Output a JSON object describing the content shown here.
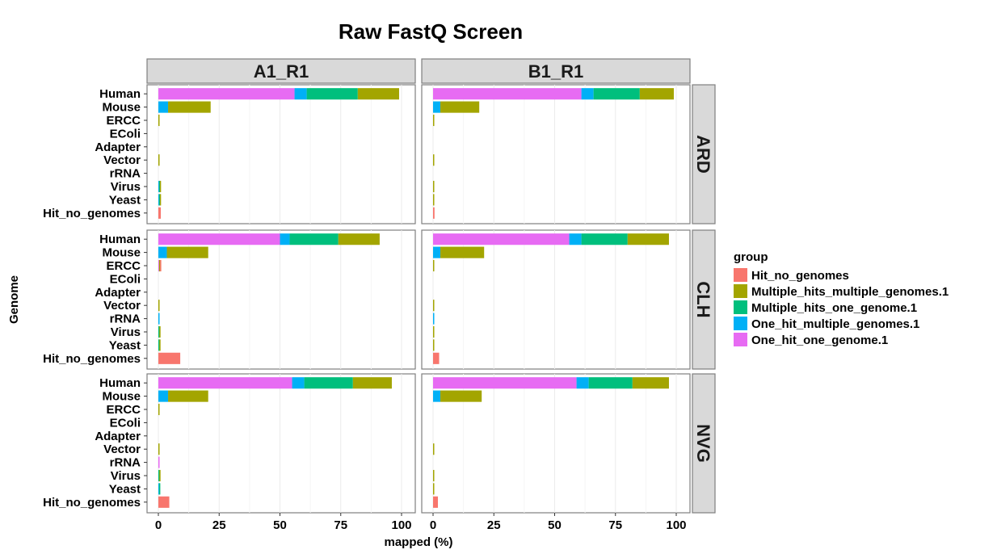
{
  "chart_data": {
    "type": "bar",
    "orientation": "horizontal",
    "stacked": true,
    "title": "Raw FastQ Screen",
    "xlabel": "mapped (%)",
    "ylabel": "Genome",
    "xlim": [
      0,
      100
    ],
    "xticks": [
      "0",
      "25",
      "50",
      "75",
      "100"
    ],
    "grid": true,
    "legend_position": "right",
    "facet_columns": [
      "A1_R1",
      "B1_R1"
    ],
    "facet_rows": [
      "ARD",
      "CLH",
      "NVG"
    ],
    "categories": [
      "Human",
      "Mouse",
      "ERCC",
      "EColi",
      "Adapter",
      "Vector",
      "rRNA",
      "Virus",
      "Yeast",
      "Hit_no_genomes"
    ],
    "legend": {
      "title": "group",
      "items": [
        {
          "key": "Hit_no_genomes",
          "label": "Hit_no_genomes",
          "color": "#F8766D"
        },
        {
          "key": "Multiple_hits_multiple_genomes.1",
          "label": "Multiple_hits_multiple_genomes.1",
          "color": "#A3A500"
        },
        {
          "key": "Multiple_hits_one_genome.1",
          "label": "Multiple_hits_one_genome.1",
          "color": "#00BF7D"
        },
        {
          "key": "One_hit_multiple_genomes.1",
          "label": "One_hit_multiple_genomes.1",
          "color": "#00B0F6"
        },
        {
          "key": "One_hit_one_genome.1",
          "label": "One_hit_one_genome.1",
          "color": "#E76BF3"
        }
      ]
    },
    "stack_order": [
      "One_hit_one_genome.1",
      "One_hit_multiple_genomes.1",
      "Multiple_hits_one_genome.1",
      "Multiple_hits_multiple_genomes.1",
      "Hit_no_genomes"
    ],
    "panels": [
      {
        "row": "ARD",
        "col": "A1_R1",
        "bars": {
          "Human": [
            56,
            5,
            21,
            17,
            0
          ],
          "Mouse": [
            0,
            4,
            0,
            17.5,
            0
          ],
          "ERCC": [
            0,
            0,
            0,
            0.4,
            0
          ],
          "EColi": [
            0,
            0,
            0,
            0,
            0
          ],
          "Adapter": [
            0,
            0,
            0,
            0,
            0
          ],
          "Vector": [
            0,
            0,
            0,
            0.4,
            0
          ],
          "rRNA": [
            0,
            0,
            0,
            0,
            0
          ],
          "Virus": [
            0,
            0.3,
            0.3,
            0.3,
            0
          ],
          "Yeast": [
            0,
            0.3,
            0.3,
            0.3,
            0
          ],
          "Hit_no_genomes": [
            0,
            0,
            0,
            0,
            1
          ]
        }
      },
      {
        "row": "ARD",
        "col": "B1_R1",
        "bars": {
          "Human": [
            61,
            5,
            19,
            14,
            0
          ],
          "Mouse": [
            0,
            3,
            0,
            16,
            0
          ],
          "ERCC": [
            0,
            0,
            0,
            0.3,
            0
          ],
          "EColi": [
            0,
            0,
            0,
            0,
            0
          ],
          "Adapter": [
            0,
            0,
            0,
            0,
            0
          ],
          "Vector": [
            0,
            0,
            0,
            0.3,
            0
          ],
          "rRNA": [
            0,
            0,
            0,
            0,
            0
          ],
          "Virus": [
            0,
            0,
            0,
            0.5,
            0
          ],
          "Yeast": [
            0,
            0,
            0,
            0.5,
            0
          ],
          "Hit_no_genomes": [
            0,
            0,
            0,
            0,
            0.6
          ]
        }
      },
      {
        "row": "CLH",
        "col": "A1_R1",
        "bars": {
          "Human": [
            50,
            4,
            20,
            17,
            0
          ],
          "Mouse": [
            0,
            3.5,
            0,
            17,
            0
          ],
          "ERCC": [
            0.3,
            0,
            0,
            0.4,
            0.3
          ],
          "EColi": [
            0,
            0,
            0,
            0,
            0
          ],
          "Adapter": [
            0,
            0,
            0,
            0,
            0
          ],
          "Vector": [
            0,
            0,
            0,
            0.4,
            0
          ],
          "rRNA": [
            0,
            0.4,
            0,
            0,
            0
          ],
          "Virus": [
            0,
            0,
            0.4,
            0.3,
            0
          ],
          "Yeast": [
            0,
            0,
            0.4,
            0.3,
            0
          ],
          "Hit_no_genomes": [
            0,
            0,
            0,
            0,
            9
          ]
        }
      },
      {
        "row": "CLH",
        "col": "B1_R1",
        "bars": {
          "Human": [
            56,
            5,
            19,
            17,
            0
          ],
          "Mouse": [
            0,
            3,
            0,
            18,
            0
          ],
          "ERCC": [
            0,
            0,
            0,
            0.4,
            0
          ],
          "EColi": [
            0,
            0,
            0,
            0,
            0
          ],
          "Adapter": [
            0,
            0,
            0,
            0,
            0
          ],
          "Vector": [
            0,
            0,
            0,
            0.3,
            0
          ],
          "rRNA": [
            0,
            0.4,
            0,
            0,
            0
          ],
          "Virus": [
            0,
            0,
            0,
            0.5,
            0
          ],
          "Yeast": [
            0,
            0,
            0,
            0.5,
            0
          ],
          "Hit_no_genomes": [
            0,
            0,
            0,
            0,
            2.5
          ]
        }
      },
      {
        "row": "NVG",
        "col": "A1_R1",
        "bars": {
          "Human": [
            55,
            5,
            20,
            16,
            0
          ],
          "Mouse": [
            0,
            4,
            0,
            16.5,
            0
          ],
          "ERCC": [
            0,
            0,
            0,
            0.4,
            0
          ],
          "EColi": [
            0,
            0,
            0,
            0,
            0
          ],
          "Adapter": [
            0,
            0,
            0,
            0,
            0
          ],
          "Vector": [
            0,
            0,
            0,
            0.4,
            0
          ],
          "rRNA": [
            0.5,
            0,
            0,
            0,
            0
          ],
          "Virus": [
            0,
            0,
            0.4,
            0.3,
            0
          ],
          "Yeast": [
            0,
            0.3,
            0.3,
            0,
            0
          ],
          "Hit_no_genomes": [
            0,
            0,
            0,
            0,
            4.5
          ]
        }
      },
      {
        "row": "NVG",
        "col": "B1_R1",
        "bars": {
          "Human": [
            59,
            5,
            18,
            15,
            0
          ],
          "Mouse": [
            0,
            3,
            0,
            17,
            0
          ],
          "ERCC": [
            0,
            0,
            0,
            0,
            0
          ],
          "EColi": [
            0,
            0,
            0,
            0,
            0
          ],
          "Adapter": [
            0,
            0,
            0,
            0,
            0
          ],
          "Vector": [
            0,
            0,
            0,
            0.3,
            0
          ],
          "rRNA": [
            0,
            0,
            0,
            0,
            0
          ],
          "Virus": [
            0,
            0,
            0,
            0.5,
            0
          ],
          "Yeast": [
            0,
            0,
            0,
            0.4,
            0
          ],
          "Hit_no_genomes": [
            0,
            0,
            0,
            0,
            2
          ]
        }
      }
    ]
  }
}
